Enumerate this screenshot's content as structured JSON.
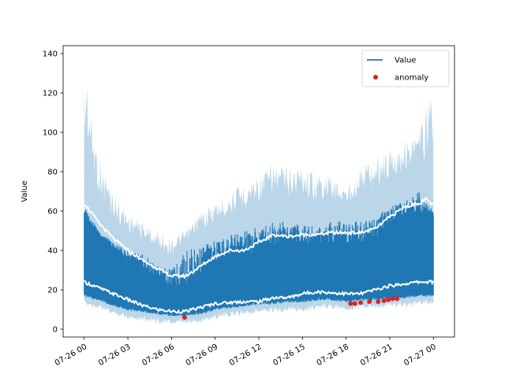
{
  "chart_data": {
    "type": "line",
    "title": "",
    "xlabel": "",
    "ylabel": "Value",
    "ylim": [
      -4,
      144
    ],
    "xlim_hours": [
      -1.45,
      25.45
    ],
    "yticks": [
      0,
      20,
      40,
      60,
      80,
      100,
      120,
      140
    ],
    "xticks": [
      {
        "hour": 0,
        "label": "07-26 00"
      },
      {
        "hour": 3,
        "label": "07-26 03"
      },
      {
        "hour": 6,
        "label": "07-26 06"
      },
      {
        "hour": 9,
        "label": "07-26 09"
      },
      {
        "hour": 12,
        "label": "07-26 12"
      },
      {
        "hour": 15,
        "label": "07-26 15"
      },
      {
        "hour": 18,
        "label": "07-26 18"
      },
      {
        "hour": 21,
        "label": "07-26 21"
      },
      {
        "hour": 24,
        "label": "07-27 00"
      }
    ],
    "legend": {
      "position": "upper right",
      "entries": [
        {
          "label": "Value",
          "kind": "line",
          "color": "#1f77b4"
        },
        {
          "label": "anomaly",
          "kind": "marker",
          "color": "#d62728"
        }
      ]
    },
    "series": [
      {
        "name": "Value",
        "color": "#1f77b4",
        "hours": [
          0,
          1,
          2,
          3,
          4,
          5,
          6,
          7,
          8,
          9,
          10,
          11,
          12,
          13,
          14,
          15,
          16,
          17,
          18,
          19,
          20,
          21,
          22,
          23,
          24
        ],
        "low": [
          18,
          16,
          13,
          11,
          10,
          9,
          8,
          8,
          9,
          11,
          12,
          13,
          14,
          14,
          15,
          15,
          16,
          16,
          15,
          16,
          16,
          17,
          17,
          18,
          18
        ],
        "high": [
          62,
          50,
          44,
          40,
          38,
          33,
          30,
          40,
          42,
          45,
          48,
          50,
          52,
          55,
          55,
          53,
          52,
          55,
          55,
          55,
          58,
          62,
          65,
          70,
          60
        ]
      },
      {
        "name": "upper envelope",
        "color": "#1f77b4",
        "opacity": 0.3,
        "hours": [
          0,
          0.2,
          0.5,
          1,
          2,
          3,
          4,
          5,
          6,
          7,
          8,
          9,
          10,
          11,
          12,
          13,
          14,
          15,
          16,
          17,
          18,
          19,
          20,
          21,
          22,
          23,
          23.7,
          24
        ],
        "values": [
          130,
          134,
          110,
          90,
          70,
          60,
          55,
          50,
          47,
          50,
          60,
          65,
          70,
          75,
          80,
          85,
          83,
          85,
          80,
          78,
          72,
          85,
          88,
          93,
          98,
          100,
          120,
          130
        ]
      },
      {
        "name": "upper mean",
        "color": "#ffffff",
        "hours": [
          0,
          1,
          2,
          3,
          4,
          5,
          6,
          7,
          8,
          9,
          10,
          11,
          12,
          13,
          14,
          15,
          16,
          17,
          18,
          19,
          20,
          21,
          22,
          23,
          23.5,
          24
        ],
        "values": [
          64,
          54,
          46,
          40,
          35,
          31,
          27,
          27,
          32,
          37,
          40,
          40,
          44,
          48,
          47,
          48,
          48,
          49,
          49,
          49,
          51,
          57,
          62,
          64,
          66,
          63
        ]
      },
      {
        "name": "lower mean",
        "color": "#ffffff",
        "hours": [
          0,
          1,
          2,
          3,
          4,
          5,
          6,
          7,
          8,
          9,
          10,
          11,
          12,
          13,
          14,
          15,
          16,
          17,
          18,
          19,
          20,
          21,
          22,
          23,
          24
        ],
        "values": [
          24,
          21,
          18,
          15,
          12,
          10,
          9,
          9,
          11,
          13,
          13.5,
          14,
          14,
          16,
          16,
          18,
          19,
          18.5,
          18,
          18,
          20,
          22,
          23,
          24,
          24
        ]
      },
      {
        "name": "anomaly",
        "color": "#d62728",
        "hours": [
          6.9,
          18.3,
          18.6,
          19.0,
          19.6,
          20.2,
          20.6,
          20.9,
          21.2,
          21.5
        ],
        "values": [
          6,
          13,
          13,
          13.5,
          14,
          14,
          14.5,
          15,
          15.5,
          15.5
        ]
      }
    ]
  }
}
